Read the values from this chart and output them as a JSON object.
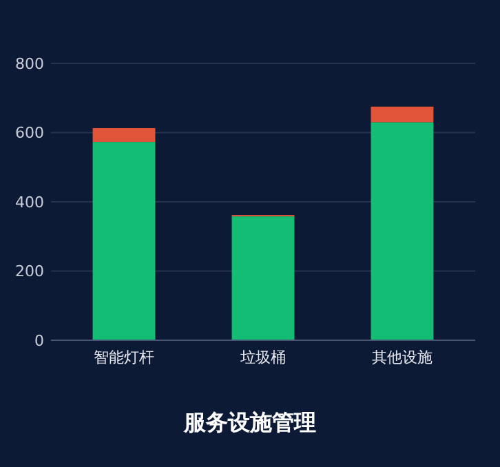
{
  "chart_data": {
    "type": "bar",
    "title": "服务设施管理",
    "categories": [
      "智能灯杆",
      "垃圾桶",
      "其他设施"
    ],
    "stacked": true,
    "series": [
      {
        "color": "#13bd74",
        "values": [
          573,
          358,
          630
        ]
      },
      {
        "color": "#e0543a",
        "values": [
          40,
          4,
          45
        ]
      }
    ],
    "ylim": [
      0,
      800
    ],
    "yticks": [
      0,
      200,
      400,
      600,
      800
    ],
    "grid": "y"
  }
}
